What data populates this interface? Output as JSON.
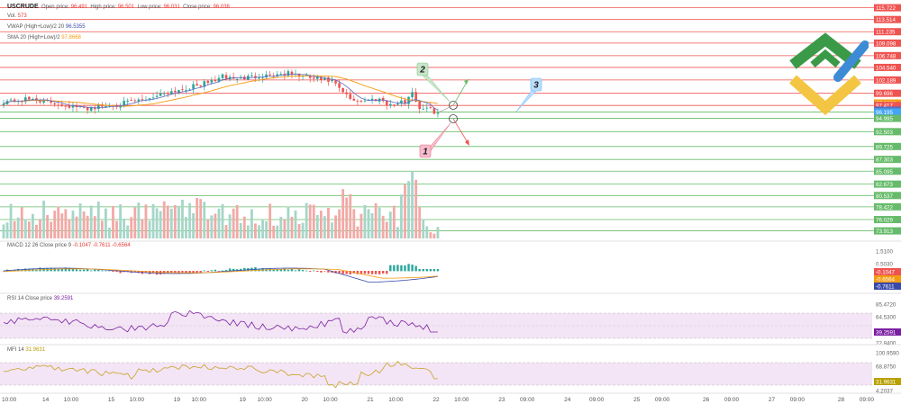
{
  "header": {
    "symbol": "USCRUDE",
    "open_label": "Open price:",
    "open_value": "96.491",
    "high_label": "High price:",
    "high_value": "96.501",
    "low_label": "Low price:",
    "low_value": "96.031",
    "close_label": "Close price:",
    "close_value": "96.038",
    "vol_label": "Vol.",
    "vol_value": "573",
    "vwap_label": "VWAP (High+Low)/2 20",
    "vwap_value": "96.5355",
    "sma_label": "SMA 20 (High+Low)/2",
    "sma_value": "97.8668"
  },
  "macd_legend": {
    "label": "MACD 12 26 Close price 9",
    "values": "-0.1047  -0.7611  -0.6564"
  },
  "rsi_legend": {
    "label": "RSI 14 Close price",
    "value": "39.2591"
  },
  "mfi_legend": {
    "label": "MFI 14",
    "value": "31.9631"
  },
  "colors": {
    "bull": "#26a69a",
    "bear": "#ef5350",
    "resistance": "#ef5350",
    "support": "#66bb6a",
    "vwap": "#5c6bc0",
    "sma": "#f39c12",
    "rsi_line": "#7b1fa2",
    "mfi_line": "#c9a227",
    "band_fill": "#f3e5f5",
    "logo_green": "#3a9a48",
    "logo_yellow": "#f4c542",
    "logo_blue": "#3d8bd4"
  },
  "chart_data": [
    {
      "type": "candlestick",
      "title": "USCRUDE",
      "price_axis_labels": [
        "115.722",
        "113.514",
        "111.235",
        "109.098",
        "106.748",
        "104.540",
        "102.189",
        "99.696",
        "97.8668",
        "97.417",
        "96.5355",
        "96.195",
        "94.995",
        "92.503",
        "89.725",
        "87.303",
        "85.095",
        "82.673",
        "80.537",
        "78.422",
        "76.029",
        "73.913"
      ],
      "price_axis_highlight": {
        "97.8668": "#f39c12",
        "97.417": "#ef5350",
        "96.5355": "#5c6bc0",
        "96.195": "#42a5f5"
      },
      "resistance_levels": [
        115.722,
        113.514,
        111.235,
        109.098,
        106.748,
        104.54,
        102.189,
        99.696,
        97.417
      ],
      "support_levels": [
        96.195,
        94.995,
        92.503,
        89.725,
        87.303,
        85.095,
        82.673,
        80.537,
        78.422,
        76.029,
        73.913
      ],
      "ylim": [
        73.0,
        116.5
      ],
      "candles_count": 120,
      "close_path_anchors": [
        [
          0,
          98.2
        ],
        [
          8,
          98.6
        ],
        [
          16,
          97.6
        ],
        [
          22,
          96.8
        ],
        [
          30,
          97.5
        ],
        [
          38,
          98.4
        ],
        [
          44,
          99.8
        ],
        [
          50,
          100.6
        ],
        [
          56,
          101.7
        ],
        [
          60,
          102.8
        ],
        [
          64,
          102.4
        ],
        [
          70,
          103.0
        ],
        [
          78,
          103.4
        ],
        [
          84,
          102.6
        ],
        [
          90,
          101.9
        ],
        [
          92,
          100.5
        ],
        [
          95,
          98.6
        ],
        [
          98,
          98.3
        ],
        [
          103,
          98.7
        ],
        [
          106,
          97.5
        ],
        [
          110,
          98.1
        ],
        [
          112,
          100.1
        ],
        [
          113,
          98.2
        ],
        [
          114,
          97.0
        ],
        [
          116,
          96.8
        ],
        [
          119,
          96.04
        ]
      ],
      "annotations": [
        {
          "label": "1",
          "kind": "bearish-scenario"
        },
        {
          "label": "2",
          "kind": "bullish-scenario"
        },
        {
          "label": "3",
          "kind": "target"
        }
      ]
    },
    {
      "type": "bar",
      "title": "Volume",
      "xlabel": "",
      "ylabel": ""
    },
    {
      "type": "line",
      "title": "MACD",
      "axis_labels": [
        "1.5100",
        "0.5030",
        "-0.1047",
        "-0.6564",
        "-0.7611"
      ],
      "axis_highlight": {
        "-0.1047": "#ef5350",
        "-0.6564": "#f39c12",
        "-0.7611": "#3949ab"
      }
    },
    {
      "type": "line",
      "title": "RSI",
      "axis_labels": [
        "85.4720",
        "64.5300",
        "39.2591",
        "22.8400"
      ],
      "axis_highlight": {
        "39.2591": "#7b1fa2"
      },
      "band": [
        30,
        70
      ]
    },
    {
      "type": "line",
      "title": "MFI",
      "axis_labels": [
        "100.9590",
        "68.8750",
        "31.9631",
        "4.2037"
      ],
      "axis_highlight": {
        "31.9631": "#b8a000"
      },
      "band": [
        20,
        80
      ]
    }
  ],
  "time_axis": [
    {
      "label": "10:00",
      "i": 2
    },
    {
      "label": "14",
      "i": 12
    },
    {
      "label": "10:00",
      "i": 19
    },
    {
      "label": "15",
      "i": 30
    },
    {
      "label": "10:00",
      "i": 37
    },
    {
      "label": "19",
      "i": 48
    },
    {
      "label": "10:00",
      "i": 54
    },
    {
      "label": "19",
      "i": 66
    },
    {
      "label": "10:00",
      "i": 72
    },
    {
      "label": "20",
      "i": 83
    },
    {
      "label": "10:00",
      "i": 90
    },
    {
      "label": "21",
      "i": 101
    },
    {
      "label": "10:00",
      "i": 108
    },
    {
      "label": "22",
      "i": 119
    },
    {
      "label": "10:00",
      "i": 126
    },
    {
      "label": "23",
      "i": 137
    },
    {
      "label": "09:00",
      "i": 144
    },
    {
      "label": "24",
      "i": 155
    },
    {
      "label": "09:00",
      "i": 163
    },
    {
      "label": "25",
      "i": 174
    },
    {
      "label": "09:00",
      "i": 181
    },
    {
      "label": "26",
      "i": 193
    },
    {
      "label": "09:00",
      "i": 200
    },
    {
      "label": "27",
      "i": 211
    },
    {
      "label": "09:00",
      "i": 218
    },
    {
      "label": "28",
      "i": 230
    },
    {
      "label": "09:00",
      "i": 237
    }
  ]
}
